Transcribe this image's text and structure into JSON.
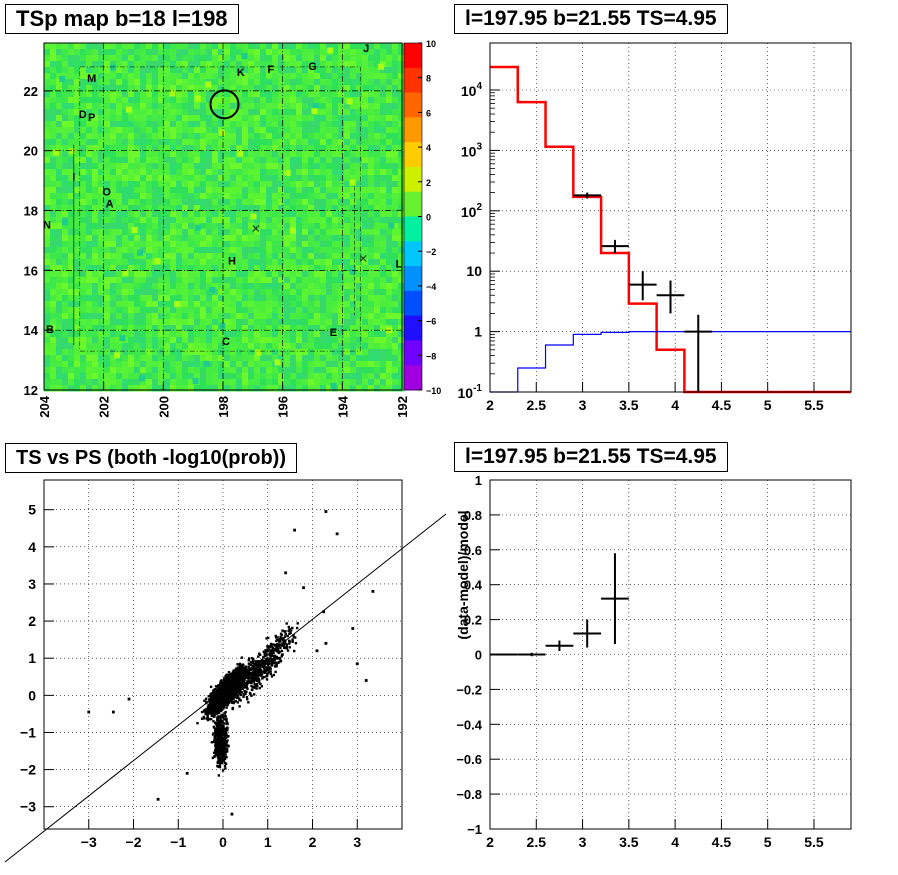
{
  "panels": {
    "tl_title": "TSp map b=18 l=198",
    "tr_title": "l=197.95 b=21.55 TS=4.95",
    "bl_title": "TS vs PS (both -log10(prob))",
    "br_title": "l=197.95 b=21.55 TS=4.95"
  },
  "chart_data": [
    {
      "type": "heatmap",
      "title": "TSp map b=18 l=198",
      "x_ticks": [
        "204",
        "202",
        "200",
        "198",
        "196",
        "194",
        "192"
      ],
      "xlim": [
        204,
        192
      ],
      "y_ticks": [
        "12",
        "14",
        "16",
        "18",
        "20",
        "22"
      ],
      "ylim": [
        12,
        23.6
      ],
      "colorbar": {
        "min": -10,
        "max": 10,
        "ticks": [
          "10",
          "8",
          "6",
          "4",
          "2",
          "0",
          "−2",
          "−4",
          "−6",
          "−8",
          "−10"
        ]
      },
      "source_labels": [
        {
          "name": "J",
          "l": 193.2,
          "b": 23.3
        },
        {
          "name": "K",
          "l": 197.4,
          "b": 22.5
        },
        {
          "name": "F",
          "l": 196.4,
          "b": 22.6
        },
        {
          "name": "G",
          "l": 195.0,
          "b": 22.7
        },
        {
          "name": "M",
          "l": 202.4,
          "b": 22.3
        },
        {
          "name": "D",
          "l": 202.7,
          "b": 21.1
        },
        {
          "name": "P",
          "l": 202.4,
          "b": 21.0
        },
        {
          "name": "I",
          "l": 203.0,
          "b": 19.0
        },
        {
          "name": "O",
          "l": 201.9,
          "b": 18.5
        },
        {
          "name": "A",
          "l": 201.8,
          "b": 18.1
        },
        {
          "name": "N",
          "l": 203.9,
          "b": 17.4
        },
        {
          "name": "H",
          "l": 197.7,
          "b": 16.2
        },
        {
          "name": "L",
          "l": 192.1,
          "b": 16.1
        },
        {
          "name": "B",
          "l": 203.8,
          "b": 13.9
        },
        {
          "name": "E",
          "l": 194.3,
          "b": 13.8
        },
        {
          "name": "C",
          "l": 197.9,
          "b": 13.5
        }
      ],
      "circle": {
        "l": 197.95,
        "b": 21.55
      }
    },
    {
      "type": "line",
      "title": "l=197.95 b=21.55 TS=4.95",
      "log_y": true,
      "xlim": [
        2,
        5.9
      ],
      "ylim": [
        0.1,
        60000
      ],
      "x_ticks": [
        "2",
        "2.5",
        "3",
        "3.5",
        "4",
        "4.5",
        "5",
        "5.5"
      ],
      "y_ticks": [
        "10^-1",
        "1",
        "10",
        "10^2",
        "10^3",
        "10^4"
      ],
      "series": [
        {
          "color": "#ff0000",
          "edges": [
            2.0,
            2.3,
            2.6,
            2.9,
            3.2,
            3.5,
            3.8,
            4.1,
            4.4,
            5.9
          ],
          "values": [
            24000,
            6300,
            1150,
            170,
            20,
            2.9,
            0.5,
            0.1,
            0.1
          ]
        },
        {
          "color": "#0000ff",
          "edges": [
            2.0,
            2.3,
            2.6,
            2.9,
            3.2,
            3.5,
            3.8,
            4.1,
            4.4,
            5.9
          ],
          "values": [
            0.1,
            0.25,
            0.6,
            0.9,
            0.97,
            1.0,
            1.0,
            1.0,
            1.0
          ]
        }
      ],
      "points": [
        {
          "x": 3.05,
          "y": 180,
          "xerr": 0.15,
          "ylo": 160,
          "yhi": 200
        },
        {
          "x": 3.35,
          "y": 26,
          "xerr": 0.15,
          "ylo": 20,
          "yhi": 33
        },
        {
          "x": 3.65,
          "y": 6,
          "xerr": 0.15,
          "ylo": 3.3,
          "yhi": 10
        },
        {
          "x": 3.95,
          "y": 4,
          "xerr": 0.15,
          "ylo": 2,
          "yhi": 7
        },
        {
          "x": 4.25,
          "y": 1,
          "xerr": 0.15,
          "ylo": 0.1,
          "yhi": 1.9
        }
      ]
    },
    {
      "type": "scatter",
      "title": "TS vs PS (both -log10(prob))",
      "xlim": [
        -4.0,
        4.0
      ],
      "ylim": [
        -3.6,
        5.8
      ],
      "x_ticks": [
        "−3",
        "−2",
        "−1",
        "0",
        "1",
        "2",
        "3"
      ],
      "y_ticks": [
        "−3",
        "−2",
        "−1",
        "0",
        "1",
        "2",
        "3",
        "4",
        "5"
      ],
      "diagonal": "y = x",
      "outliers": [
        [
          2.3,
          4.95
        ],
        [
          2.55,
          4.35
        ],
        [
          1.6,
          4.45
        ],
        [
          1.4,
          3.3
        ],
        [
          2.25,
          2.25
        ],
        [
          3.35,
          2.8
        ],
        [
          3.0,
          0.85
        ],
        [
          2.1,
          1.2
        ],
        [
          -3.0,
          -0.45
        ],
        [
          -2.45,
          -0.45
        ],
        [
          -1.45,
          -2.8
        ],
        [
          2.3,
          1.4
        ],
        [
          1.8,
          2.9
        ],
        [
          2.9,
          1.8
        ],
        [
          -2.1,
          -0.1
        ],
        [
          0.2,
          -3.2
        ],
        [
          -0.8,
          -2.1
        ],
        [
          3.2,
          0.4
        ]
      ]
    },
    {
      "type": "line",
      "title": "l=197.95 b=21.55 TS=4.95",
      "ylabel": "(data-model)/model",
      "xlim": [
        2,
        5.9
      ],
      "ylim": [
        -1,
        1
      ],
      "x_ticks": [
        "2",
        "2.5",
        "3",
        "3.5",
        "4",
        "4.5",
        "5",
        "5.5"
      ],
      "y_ticks": [
        "−1",
        "−0.8",
        "−0.6",
        "−0.4",
        "−0.2",
        "0",
        "0.2",
        "0.4",
        "0.6",
        "0.8",
        "1"
      ],
      "points": [
        {
          "x": 2.15,
          "y": 0.0,
          "xerr": 0.15,
          "yerr": 0.005
        },
        {
          "x": 2.45,
          "y": 0.0,
          "xerr": 0.15,
          "yerr": 0.01
        },
        {
          "x": 2.75,
          "y": 0.05,
          "xerr": 0.15,
          "yerr": 0.03
        },
        {
          "x": 3.05,
          "y": 0.12,
          "xerr": 0.15,
          "yerr": 0.08
        },
        {
          "x": 3.35,
          "y": 0.32,
          "xerr": 0.15,
          "yerr": 0.26
        }
      ]
    }
  ]
}
